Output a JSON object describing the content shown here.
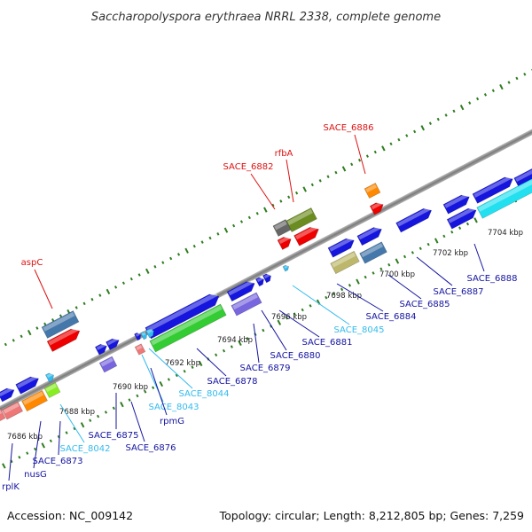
{
  "title": "Saccharopolyspora erythraea NRRL 2338, complete genome",
  "footer": {
    "accession": "Accession: NC_009142",
    "summary": "Topology: circular; Length: 8,212,805 bp; Genes: 7,259"
  },
  "colors": {
    "backbone": "#8c8c8c",
    "dots": "#2e7d1f",
    "label_cds": "#1414a0",
    "label_rna": "#33bbee",
    "label_highlight": "#dd1111",
    "leader": "#1414a0"
  },
  "ticks": [
    "7686 kbp",
    "7688 kbp",
    "7690 kbp",
    "7692 kbp",
    "7694 kbp",
    "7696 kbp",
    "7698 kbp",
    "7700 kbp",
    "7702 kbp",
    "7704 kbp"
  ],
  "labels": {
    "SACE_6886": "SACE_6886",
    "rfbA": "rfbA",
    "SACE_6882": "SACE_6882",
    "aspC": "aspC",
    "SACE_6888": "SACE_6888",
    "SACE_6887": "SACE_6887",
    "SACE_6885": "SACE_6885",
    "SACE_6884": "SACE_6884",
    "SACE_8045": "SACE_8045",
    "SACE_6881": "SACE_6881",
    "SACE_6880": "SACE_6880",
    "SACE_6879": "SACE_6879",
    "SACE_6878": "SACE_6878",
    "SACE_8044": "SACE_8044",
    "SACE_8043": "SACE_8043",
    "rpmG": "rpmG",
    "SACE_6876": "SACE_6876",
    "SACE_6875": "SACE_6875",
    "SACE_8042": "SACE_8042",
    "SACE_6873": "SACE_6873",
    "nusG": "nusG",
    "rplK": "rplK"
  }
}
